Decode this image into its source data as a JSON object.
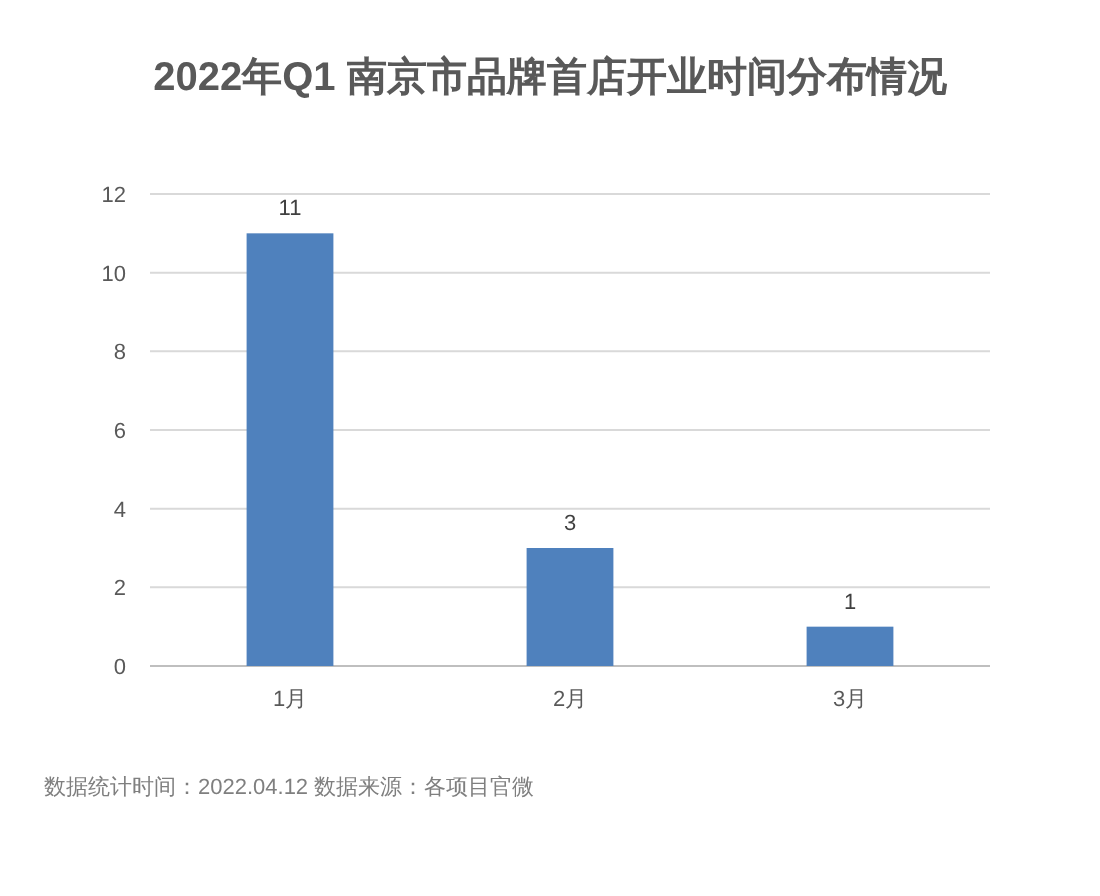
{
  "chart_data": {
    "type": "bar",
    "title": "2022年Q1 南京市品牌首店开业时间分布情况",
    "categories": [
      "1月",
      "2月",
      "3月"
    ],
    "values": [
      11,
      3,
      1
    ],
    "color": "#4f81bd",
    "ylim": [
      0,
      12
    ],
    "yticks": [
      0,
      2,
      4,
      6,
      8,
      10,
      12
    ],
    "grid": "y",
    "data_labels": true,
    "annotations": [
      "数据统计时间：2022.04.12  数据来源：各项目官微"
    ]
  }
}
